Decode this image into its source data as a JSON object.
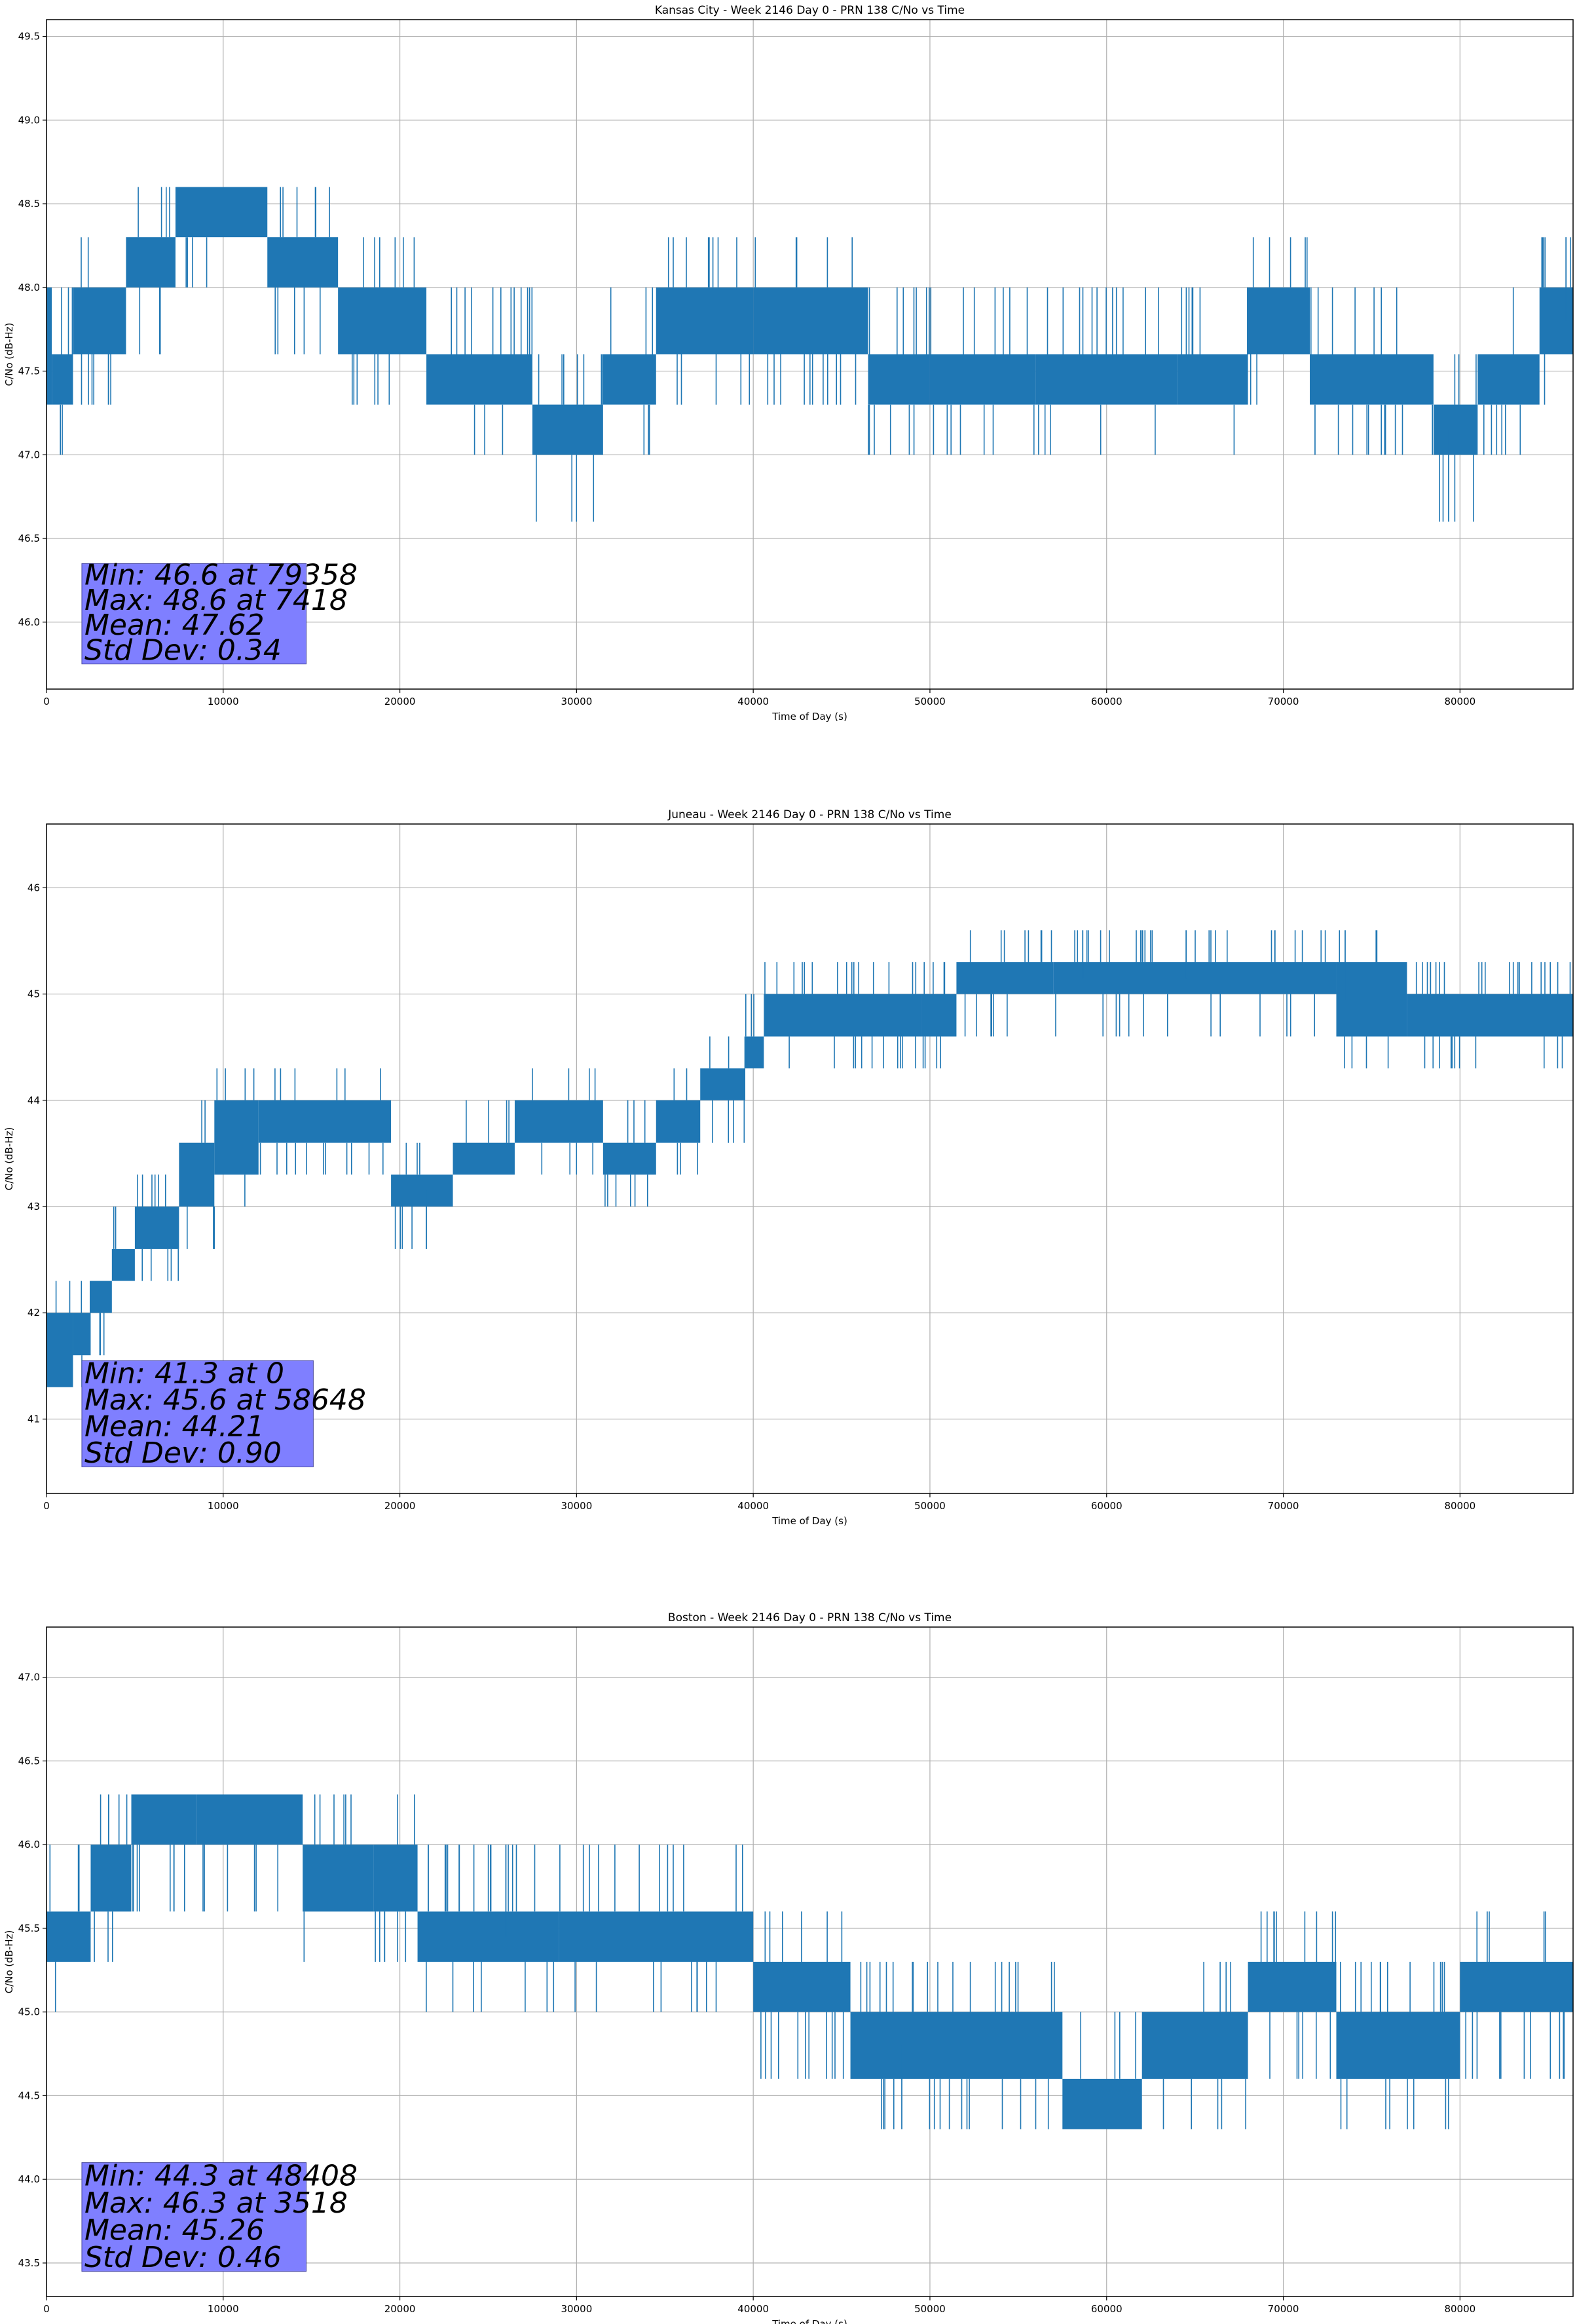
{
  "chart_data": [
    {
      "type": "line",
      "title": "Kansas City - Week 2146 Day 0 - PRN 138 C/No vs Time",
      "xlabel": "Time of Day (s)",
      "ylabel": "C/No (dB-Hz)",
      "xlim": [
        0,
        86400
      ],
      "ylim": [
        45.6,
        49.6
      ],
      "xticks": [
        0,
        10000,
        20000,
        30000,
        40000,
        50000,
        60000,
        70000,
        80000
      ],
      "yticks": [
        "46.0",
        "46.5",
        "47.0",
        "47.5",
        "48.0",
        "48.5",
        "49.0",
        "49.5"
      ],
      "grid": true,
      "series_color": "#1f77b4",
      "levels": [
        46.6,
        47.0,
        47.3,
        47.6,
        48.0,
        48.3,
        48.6
      ],
      "segments": [
        {
          "x": [
            0,
            300
          ],
          "low": 47.3,
          "high": 48.0
        },
        {
          "x": [
            300,
            1500
          ],
          "low": 47.3,
          "high": 47.6
        },
        {
          "x": [
            1500,
            4500
          ],
          "low": 47.6,
          "high": 48.0
        },
        {
          "x": [
            4500,
            7300
          ],
          "low": 48.0,
          "high": 48.3
        },
        {
          "x": [
            7300,
            12500
          ],
          "low": 48.3,
          "high": 48.6
        },
        {
          "x": [
            12500,
            16500
          ],
          "low": 48.0,
          "high": 48.3
        },
        {
          "x": [
            16500,
            21500
          ],
          "low": 47.6,
          "high": 48.0
        },
        {
          "x": [
            21500,
            27500
          ],
          "low": 47.3,
          "high": 47.6
        },
        {
          "x": [
            27500,
            31500
          ],
          "low": 47.0,
          "high": 47.3
        },
        {
          "x": [
            31500,
            34500
          ],
          "low": 47.3,
          "high": 47.6
        },
        {
          "x": [
            34500,
            40000
          ],
          "low": 47.6,
          "high": 48.0
        },
        {
          "x": [
            40000,
            46500
          ],
          "low": 47.6,
          "high": 48.0
        },
        {
          "x": [
            46500,
            50000
          ],
          "low": 47.3,
          "high": 47.6
        },
        {
          "x": [
            50000,
            56000
          ],
          "low": 47.3,
          "high": 47.6
        },
        {
          "x": [
            56000,
            64000
          ],
          "low": 47.3,
          "high": 47.6
        },
        {
          "x": [
            64000,
            68000
          ],
          "low": 47.3,
          "high": 47.6
        },
        {
          "x": [
            68000,
            71500
          ],
          "low": 47.6,
          "high": 48.0
        },
        {
          "x": [
            71500,
            78500
          ],
          "low": 47.3,
          "high": 47.6
        },
        {
          "x": [
            78500,
            81000
          ],
          "low": 47.0,
          "high": 47.3
        },
        {
          "x": [
            81000,
            84500
          ],
          "low": 47.3,
          "high": 47.6
        },
        {
          "x": [
            84500,
            86400
          ],
          "low": 47.6,
          "high": 48.0
        }
      ],
      "spikes": [
        [
          79358,
          46.6
        ],
        [
          86000,
          48.3
        ]
      ],
      "stats": [
        "Min: 46.6 at 79358",
        "Max: 48.6 at 7418",
        "Mean: 47.62",
        "Std Dev: 0.34"
      ],
      "stats_box": {
        "x": [
          2000,
          14700
        ],
        "y": [
          45.75,
          46.35
        ]
      }
    },
    {
      "type": "line",
      "title": "Juneau - Week 2146 Day 0 - PRN 138 C/No vs Time",
      "xlabel": "Time of Day (s)",
      "ylabel": "C/No (dB-Hz)",
      "xlim": [
        0,
        86400
      ],
      "ylim": [
        40.3,
        46.6
      ],
      "xticks": [
        0,
        10000,
        20000,
        30000,
        40000,
        50000,
        60000,
        70000,
        80000
      ],
      "yticks": [
        "41",
        "42",
        "43",
        "44",
        "45",
        "46"
      ],
      "grid": true,
      "series_color": "#1f77b4",
      "levels": [
        41.3,
        41.6,
        42.0,
        42.3,
        42.6,
        43.0,
        43.3,
        43.6,
        44.0,
        44.3,
        44.6,
        45.0,
        45.3,
        45.6
      ],
      "segments": [
        {
          "x": [
            0,
            1500
          ],
          "low": 41.3,
          "high": 42.0
        },
        {
          "x": [
            1500,
            2500
          ],
          "low": 41.6,
          "high": 42.0
        },
        {
          "x": [
            2500,
            3700
          ],
          "low": 42.0,
          "high": 42.3
        },
        {
          "x": [
            3700,
            5000
          ],
          "low": 42.3,
          "high": 42.6
        },
        {
          "x": [
            5000,
            7500
          ],
          "low": 42.6,
          "high": 43.0
        },
        {
          "x": [
            7500,
            9500
          ],
          "low": 43.0,
          "high": 43.6
        },
        {
          "x": [
            9500,
            12000
          ],
          "low": 43.3,
          "high": 44.0
        },
        {
          "x": [
            12000,
            19500
          ],
          "low": 43.6,
          "high": 44.0
        },
        {
          "x": [
            19500,
            23000
          ],
          "low": 43.0,
          "high": 43.3
        },
        {
          "x": [
            23000,
            26500
          ],
          "low": 43.3,
          "high": 43.6
        },
        {
          "x": [
            26500,
            31500
          ],
          "low": 43.6,
          "high": 44.0
        },
        {
          "x": [
            31500,
            34500
          ],
          "low": 43.3,
          "high": 43.6
        },
        {
          "x": [
            34500,
            37000
          ],
          "low": 43.6,
          "high": 44.0
        },
        {
          "x": [
            37000,
            39500
          ],
          "low": 44.0,
          "high": 44.3
        },
        {
          "x": [
            39500,
            40600
          ],
          "low": 44.3,
          "high": 44.6
        },
        {
          "x": [
            40600,
            49500
          ],
          "low": 44.6,
          "high": 45.0
        },
        {
          "x": [
            49500,
            51500
          ],
          "low": 44.6,
          "high": 45.0
        },
        {
          "x": [
            51500,
            57000
          ],
          "low": 45.0,
          "high": 45.3
        },
        {
          "x": [
            57000,
            73000
          ],
          "low": 45.0,
          "high": 45.3
        },
        {
          "x": [
            73000,
            77000
          ],
          "low": 44.6,
          "high": 45.3
        },
        {
          "x": [
            77000,
            86400
          ],
          "low": 44.6,
          "high": 45.0
        }
      ],
      "spikes": [
        [
          58648,
          45.6
        ],
        [
          64500,
          45.6
        ],
        [
          73500,
          45.6
        ],
        [
          21500,
          42.6
        ]
      ],
      "stats": [
        "Min: 41.3 at 0",
        "Max: 45.6 at 58648",
        "Mean: 44.21",
        "Std Dev: 0.90"
      ],
      "stats_box": {
        "x": [
          2000,
          15100
        ],
        "y": [
          40.55,
          41.55
        ]
      }
    },
    {
      "type": "line",
      "title": "Boston - Week 2146 Day 0 - PRN 138 C/No vs Time",
      "xlabel": "Time of Day (s)",
      "ylabel": "C/No (dB-Hz)",
      "xlim": [
        0,
        86400
      ],
      "ylim": [
        43.3,
        47.3
      ],
      "xticks": [
        0,
        10000,
        20000,
        30000,
        40000,
        50000,
        60000,
        70000,
        80000
      ],
      "yticks": [
        "43.5",
        "44.0",
        "44.5",
        "45.0",
        "45.5",
        "46.0",
        "46.5",
        "47.0"
      ],
      "grid": true,
      "series_color": "#1f77b4",
      "levels": [
        44.3,
        44.6,
        45.0,
        45.3,
        45.6,
        46.0,
        46.3
      ],
      "segments": [
        {
          "x": [
            0,
            2500
          ],
          "low": 45.3,
          "high": 45.6
        },
        {
          "x": [
            2500,
            4800
          ],
          "low": 45.6,
          "high": 46.0
        },
        {
          "x": [
            4800,
            8500
          ],
          "low": 46.0,
          "high": 46.3
        },
        {
          "x": [
            8500,
            14500
          ],
          "low": 46.0,
          "high": 46.3
        },
        {
          "x": [
            14500,
            18500
          ],
          "low": 45.6,
          "high": 46.0
        },
        {
          "x": [
            18500,
            21000
          ],
          "low": 45.6,
          "high": 46.0
        },
        {
          "x": [
            21000,
            29000
          ],
          "low": 45.3,
          "high": 45.6
        },
        {
          "x": [
            29000,
            40000
          ],
          "low": 45.3,
          "high": 45.6
        },
        {
          "x": [
            40000,
            45500
          ],
          "low": 45.0,
          "high": 45.3
        },
        {
          "x": [
            45500,
            57500
          ],
          "low": 44.6,
          "high": 45.0
        },
        {
          "x": [
            57500,
            62000
          ],
          "low": 44.3,
          "high": 44.6
        },
        {
          "x": [
            62000,
            68000
          ],
          "low": 44.6,
          "high": 45.0
        },
        {
          "x": [
            68000,
            73000
          ],
          "low": 45.0,
          "high": 45.3
        },
        {
          "x": [
            73000,
            80000
          ],
          "low": 44.6,
          "high": 45.0
        },
        {
          "x": [
            80000,
            86400
          ],
          "low": 45.0,
          "high": 45.3
        }
      ],
      "spikes": [
        [
          48408,
          44.3
        ],
        [
          3518,
          46.3
        ],
        [
          26000,
          46.0
        ]
      ],
      "stats": [
        "Min: 44.3 at 48408",
        "Max: 46.3 at 3518",
        "Mean: 45.26",
        "Std Dev: 0.46"
      ],
      "stats_box": {
        "x": [
          2000,
          14700
        ],
        "y": [
          43.45,
          44.1
        ]
      }
    }
  ]
}
